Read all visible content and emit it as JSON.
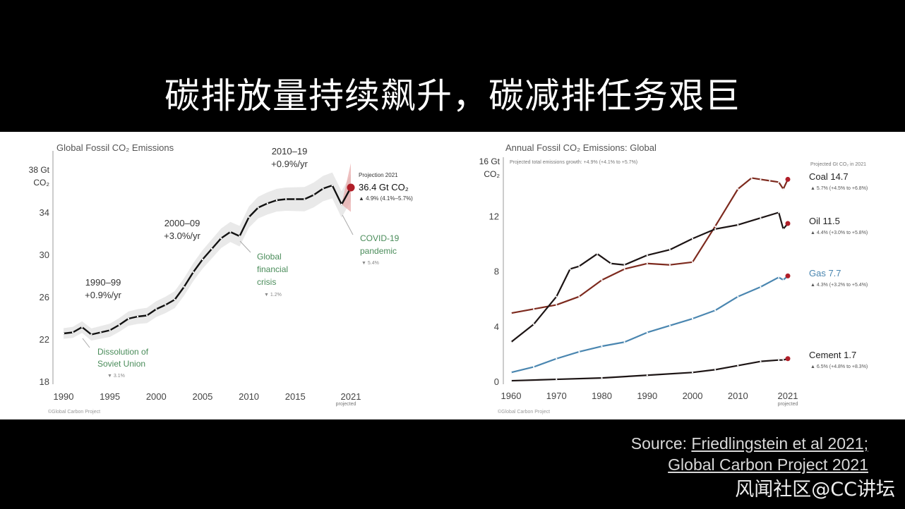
{
  "slide": {
    "headline": "碳排放量持续飙升，碳减排任务艰巨",
    "source_prefix": "Source: ",
    "source_link_1": "Friedlingstein et al 2021;",
    "source_link_2": "Global Carbon Project 2021",
    "watermark": "风闻社区@CC讲坛"
  },
  "chart_data": [
    {
      "type": "line",
      "title": "Global Fossil CO₂ Emissions",
      "ylabel_line1": "38 Gt",
      "ylabel_line2": "CO₂",
      "credit": "©Global Carbon Project",
      "x_tick_labels": [
        "1990",
        "1995",
        "2000",
        "2005",
        "2010",
        "2015",
        "2021"
      ],
      "x_sub_label": "projected",
      "y_tick_labels": [
        "18",
        "22",
        "26",
        "30",
        "34"
      ],
      "ylim": [
        18,
        38
      ],
      "xlim": [
        1990,
        2021
      ],
      "grid": false,
      "series": [
        {
          "color": "#111111",
          "x": [
            1990,
            1991,
            1992,
            1993,
            1994,
            1995,
            1996,
            1997,
            1998,
            1999,
            2000,
            2001,
            2002,
            2003,
            2004,
            2005,
            2006,
            2007,
            2008,
            2009,
            2010,
            2011,
            2012,
            2013,
            2014,
            2015,
            2016,
            2017,
            2018,
            2019,
            2020,
            2021
          ],
          "y": [
            22.6,
            22.7,
            23.2,
            22.5,
            22.7,
            22.9,
            23.4,
            24.0,
            24.2,
            24.3,
            24.9,
            25.3,
            25.8,
            27.0,
            28.4,
            29.6,
            30.6,
            31.6,
            32.2,
            31.8,
            33.6,
            34.5,
            34.9,
            35.2,
            35.3,
            35.3,
            35.3,
            35.7,
            36.3,
            36.6,
            34.8,
            36.4
          ]
        }
      ],
      "projection_label": "Projection 2021",
      "projection_value": "36.4 Gt CO₂",
      "projection_note": "▲ 4.9% (4.1%–5.7%)",
      "annotations": {
        "a1990_range": "1990–99",
        "a1990_rate": "+0.9%/yr",
        "a2000_range": "2000–09",
        "a2000_rate": "+3.0%/yr",
        "a2010_range": "2010–19",
        "a2010_rate": "+0.9%/yr",
        "soviet_1": "Dissolution of",
        "soviet_2": "Soviet Union",
        "soviet_change": "▼ 3.1%",
        "gfc_1": "Global",
        "gfc_2": "financial",
        "gfc_3": "crisis",
        "gfc_change": "▼ 1.2%",
        "covid_1": "COVID-19",
        "covid_2": "pandemic",
        "covid_change": "▼ 5.4%"
      }
    },
    {
      "type": "line",
      "title": "Annual Fossil CO₂ Emissions: Global",
      "subtitle": "Projected total emissions growth: +4.9% (+4.1% to +5.7%)",
      "ylabel_line1": "16 Gt",
      "ylabel_line2": "CO₂",
      "credit": "©Global Carbon Project",
      "legend_header": "Projected Gt CO₂ in 2021",
      "x_tick_labels": [
        "1960",
        "1970",
        "1980",
        "1990",
        "2000",
        "2010",
        "2021"
      ],
      "x_sub_label": "projected",
      "y_tick_labels": [
        "0",
        "4",
        "8",
        "12"
      ],
      "ylim": [
        0,
        16
      ],
      "xlim": [
        1960,
        2021
      ],
      "grid": false,
      "series": [
        {
          "name": "Coal 14.7",
          "note": "▲ 5.7% (+4.5% to +6.8%)",
          "color": "#7d2a1e",
          "x": [
            1960,
            1965,
            1970,
            1975,
            1980,
            1985,
            1990,
            1995,
            2000,
            2005,
            2010,
            2013,
            2015,
            2017,
            2019,
            2020,
            2021
          ],
          "y": [
            5.0,
            5.3,
            5.6,
            6.2,
            7.4,
            8.2,
            8.6,
            8.5,
            8.7,
            11.3,
            14.0,
            14.8,
            14.7,
            14.6,
            14.5,
            14.0,
            14.7
          ]
        },
        {
          "name": "Oil 11.5",
          "note": "▲ 4.4% (+3.0% to +5.8%)",
          "color": "#1c1414",
          "x": [
            1960,
            1965,
            1970,
            1973,
            1975,
            1979,
            1982,
            1985,
            1990,
            1995,
            2000,
            2005,
            2010,
            2015,
            2019,
            2020,
            2021
          ],
          "y": [
            2.9,
            4.2,
            6.2,
            8.2,
            8.4,
            9.3,
            8.6,
            8.5,
            9.2,
            9.6,
            10.4,
            11.1,
            11.4,
            11.9,
            12.3,
            11.1,
            11.5
          ]
        },
        {
          "name": "Gas 7.7",
          "note": "▲ 4.3% (+3.2% to +5.4%)",
          "color": "#4a86b0",
          "x": [
            1960,
            1965,
            1970,
            1975,
            1980,
            1985,
            1990,
            1995,
            2000,
            2005,
            2010,
            2015,
            2019,
            2020,
            2021
          ],
          "y": [
            0.7,
            1.1,
            1.7,
            2.2,
            2.6,
            2.9,
            3.6,
            4.1,
            4.6,
            5.2,
            6.2,
            6.9,
            7.6,
            7.4,
            7.7
          ]
        },
        {
          "name": "Cement 1.7",
          "note": "▲ 6.5% (+4.8% to +8.3%)",
          "color": "#1c1414",
          "x": [
            1960,
            1970,
            1980,
            1990,
            2000,
            2005,
            2010,
            2015,
            2019,
            2020,
            2021
          ],
          "y": [
            0.1,
            0.2,
            0.3,
            0.5,
            0.7,
            0.9,
            1.2,
            1.5,
            1.6,
            1.6,
            1.7
          ]
        }
      ]
    }
  ]
}
